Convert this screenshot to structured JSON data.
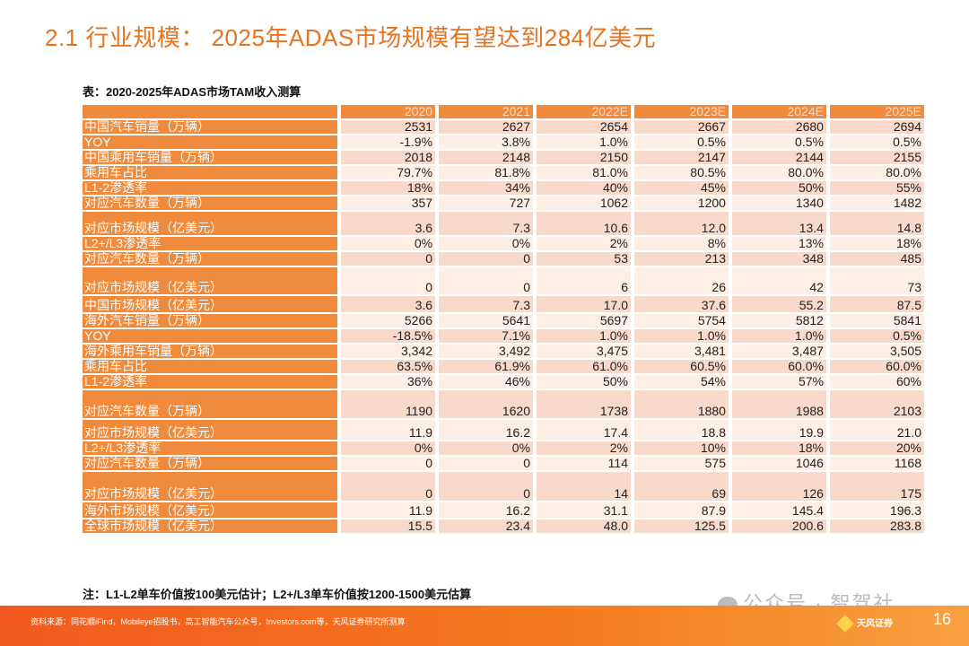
{
  "title": "2.1 行业规模： 2025年ADAS市场规模有望达到284亿美元",
  "caption": "表：2020-2025年ADAS市场TAM收入测算",
  "table": {
    "headers": [
      "",
      "2020",
      "2021",
      "2022E",
      "2023E",
      "2024E",
      "2025E"
    ],
    "rows": [
      [
        "中国汽车销量（万辆）",
        "2531",
        "2627",
        "2654",
        "2667",
        "2680",
        "2694"
      ],
      [
        "YOY",
        "-1.9%",
        "3.8%",
        "1.0%",
        "0.5%",
        "0.5%",
        "0.5%"
      ],
      [
        "中国乘用车销量（万辆）",
        "2018",
        "2148",
        "2150",
        "2147",
        "2144",
        "2155"
      ],
      [
        "乘用车占比",
        "79.7%",
        "81.8%",
        "81.0%",
        "80.5%",
        "80.0%",
        "80.0%"
      ],
      [
        "L1-2渗透率",
        "18%",
        "34%",
        "40%",
        "45%",
        "50%",
        "55%"
      ],
      [
        "对应汽车数量（万辆）",
        "357",
        "727",
        "1062",
        "1200",
        "1340",
        "1482"
      ],
      [
        "对应市场规模（亿美元）",
        "3.6",
        "7.3",
        "10.6",
        "12.0",
        "13.4",
        "14.8"
      ],
      [
        "L2+/L3渗透率",
        "0%",
        "0%",
        "2%",
        "8%",
        "13%",
        "18%"
      ],
      [
        "对应汽车数量（万辆）",
        "0",
        "0",
        "53",
        "213",
        "348",
        "485"
      ],
      [
        "对应市场规模（亿美元）",
        "0",
        "0",
        "6",
        "26",
        "42",
        "73"
      ],
      [
        "中国市场规模（亿美元）",
        "3.6",
        "7.3",
        "17.0",
        "37.6",
        "55.2",
        "87.5"
      ],
      [
        "海外汽车销量（万辆）",
        "5266",
        "5641",
        "5697",
        "5754",
        "5812",
        "5841"
      ],
      [
        "YOY",
        "-18.5%",
        "7.1%",
        "1.0%",
        "1.0%",
        "1.0%",
        "0.5%"
      ],
      [
        "海外乘用车销量（万辆）",
        "3,342",
        "3,492",
        "3,475",
        "3,481",
        "3,487",
        "3,505"
      ],
      [
        "乘用车占比",
        "63.5%",
        "61.9%",
        "61.0%",
        "60.5%",
        "60.0%",
        "60.0%"
      ],
      [
        "L1-2渗透率",
        "36%",
        "46%",
        "50%",
        "54%",
        "57%",
        "60%"
      ],
      [
        "对应汽车数量（万辆）",
        "1190",
        "1620",
        "1738",
        "1880",
        "1988",
        "2103"
      ],
      [
        "对应市场规模（亿美元）",
        "11.9",
        "16.2",
        "17.4",
        "18.8",
        "19.9",
        "21.0"
      ],
      [
        "L2+/L3渗透率",
        "0%",
        "0%",
        "2%",
        "10%",
        "18%",
        "20%"
      ],
      [
        "对应汽车数量（万辆）",
        "0",
        "0",
        "114",
        "575",
        "1046",
        "1168"
      ],
      [
        "对应市场规模（亿美元）",
        "0",
        "0",
        "14",
        "69",
        "126",
        "175"
      ],
      [
        "海外市场规模（亿美元）",
        "11.9",
        "16.2",
        "31.1",
        "87.9",
        "145.4",
        "196.3"
      ],
      [
        "全球市场规模（亿美元）",
        "15.5",
        "23.4",
        "48.0",
        "125.5",
        "200.6",
        "283.8"
      ]
    ]
  },
  "note": "注：L1-L2单车价值按100美元估计；L2+/L3单车价值按1200-1500美元估算",
  "source": "资料来源：同花顺iFind，Mobileye招股书，高工智能汽车公众号，Investors.com等，天风证券研究所测算",
  "watermark": "公众号 · 智驾社",
  "logo_text": "天风证券",
  "page_number": "16",
  "colors": {
    "accent": "#f08a3c",
    "title": "#e8731f",
    "row_light": "#fdeee6",
    "row_dark": "#f9d9c9"
  }
}
